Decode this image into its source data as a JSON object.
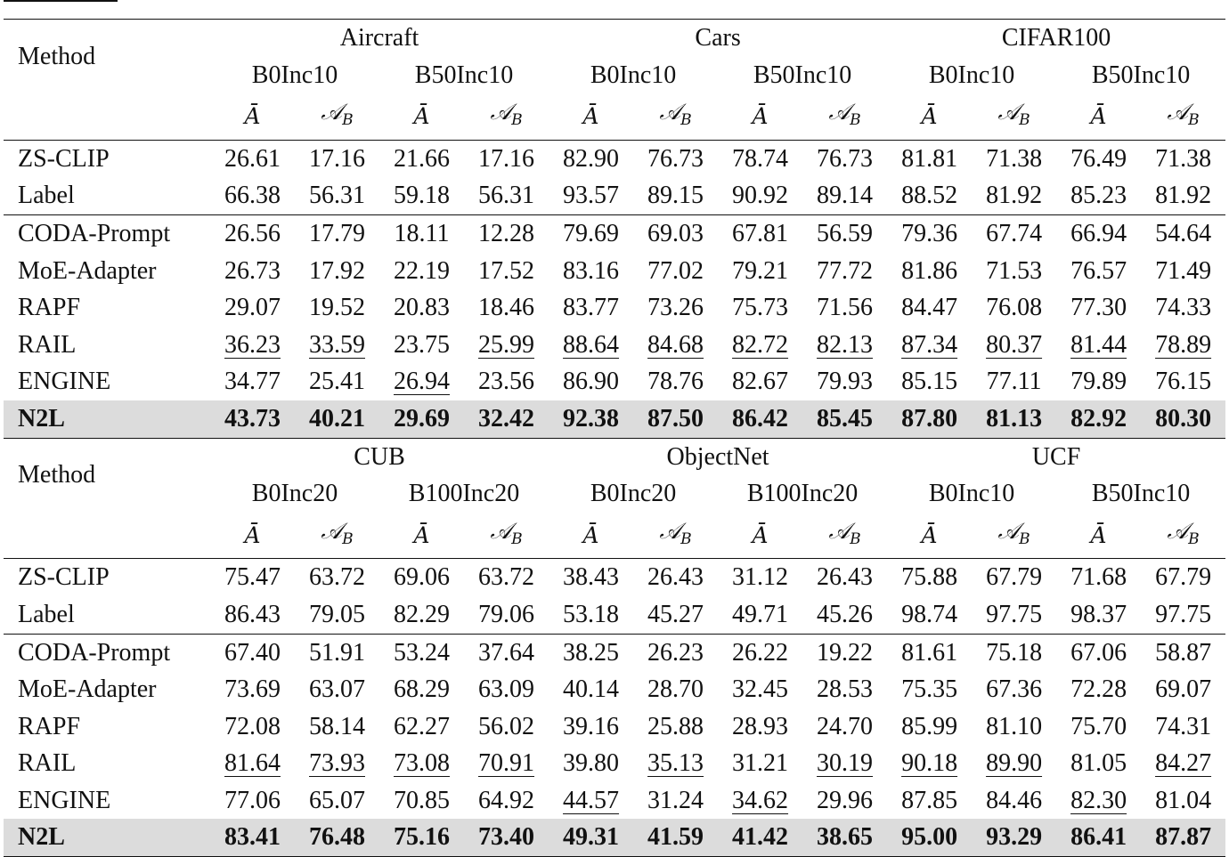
{
  "blocks": [
    {
      "method_header": "Method",
      "datasets": [
        "Aircraft",
        "Cars",
        "CIFAR100"
      ],
      "settings": [
        "B0Inc10",
        "B50Inc10",
        "B0Inc10",
        "B50Inc10",
        "B0Inc10",
        "B50Inc10"
      ],
      "metrics": [
        "Ā",
        "𝒜",
        "Ā",
        "𝒜",
        "Ā",
        "𝒜",
        "Ā",
        "𝒜",
        "Ā",
        "𝒜",
        "Ā",
        "𝒜"
      ],
      "metric_sub": "B",
      "baselines": [
        {
          "method": "ZS-CLIP",
          "values": [
            "26.61",
            "17.16",
            "21.66",
            "17.16",
            "82.90",
            "76.73",
            "78.74",
            "76.73",
            "81.81",
            "71.38",
            "76.49",
            "71.38"
          ]
        },
        {
          "method": "Label",
          "values": [
            "66.38",
            "56.31",
            "59.18",
            "56.31",
            "93.57",
            "89.15",
            "90.92",
            "89.14",
            "88.52",
            "81.92",
            "85.23",
            "81.92"
          ]
        }
      ],
      "methods": [
        {
          "method": "CODA-Prompt",
          "values": [
            "26.56",
            "17.79",
            "18.11",
            "12.28",
            "79.69",
            "69.03",
            "67.81",
            "56.59",
            "79.36",
            "67.74",
            "66.94",
            "54.64"
          ]
        },
        {
          "method": "MoE-Adapter",
          "values": [
            "26.73",
            "17.92",
            "22.19",
            "17.52",
            "83.16",
            "77.02",
            "79.21",
            "77.72",
            "81.86",
            "71.53",
            "76.57",
            "71.49"
          ]
        },
        {
          "method": "RAPF",
          "values": [
            "29.07",
            "19.52",
            "20.83",
            "18.46",
            "83.77",
            "73.26",
            "75.73",
            "71.56",
            "84.47",
            "76.08",
            "77.30",
            "74.33"
          ]
        },
        {
          "method": "RAIL",
          "values": [
            "36.23",
            "33.59",
            "23.75",
            "25.99",
            "88.64",
            "84.68",
            "82.72",
            "82.13",
            "87.34",
            "80.37",
            "81.44",
            "78.89"
          ],
          "underline": [
            0,
            1,
            3,
            4,
            5,
            6,
            7,
            8,
            9,
            10,
            11
          ]
        },
        {
          "method": "ENGINE",
          "values": [
            "34.77",
            "25.41",
            "26.94",
            "23.56",
            "86.90",
            "78.76",
            "82.67",
            "79.93",
            "85.15",
            "77.11",
            "79.89",
            "76.15"
          ],
          "underline": [
            2
          ]
        }
      ],
      "ours": {
        "method": "N2L",
        "values": [
          "43.73",
          "40.21",
          "29.69",
          "32.42",
          "92.38",
          "87.50",
          "86.42",
          "85.45",
          "87.80",
          "81.13",
          "82.92",
          "80.30"
        ]
      }
    },
    {
      "method_header": "Method",
      "datasets": [
        "CUB",
        "ObjectNet",
        "UCF"
      ],
      "settings": [
        "B0Inc20",
        "B100Inc20",
        "B0Inc20",
        "B100Inc20",
        "B0Inc10",
        "B50Inc10"
      ],
      "metrics": [
        "Ā",
        "𝒜",
        "Ā",
        "𝒜",
        "Ā",
        "𝒜",
        "Ā",
        "𝒜",
        "Ā",
        "𝒜",
        "Ā",
        "𝒜"
      ],
      "metric_sub": "B",
      "baselines": [
        {
          "method": "ZS-CLIP",
          "values": [
            "75.47",
            "63.72",
            "69.06",
            "63.72",
            "38.43",
            "26.43",
            "31.12",
            "26.43",
            "75.88",
            "67.79",
            "71.68",
            "67.79"
          ]
        },
        {
          "method": "Label",
          "values": [
            "86.43",
            "79.05",
            "82.29",
            "79.06",
            "53.18",
            "45.27",
            "49.71",
            "45.26",
            "98.74",
            "97.75",
            "98.37",
            "97.75"
          ]
        }
      ],
      "methods": [
        {
          "method": "CODA-Prompt",
          "values": [
            "67.40",
            "51.91",
            "53.24",
            "37.64",
            "38.25",
            "26.23",
            "26.22",
            "19.22",
            "81.61",
            "75.18",
            "67.06",
            "58.87"
          ]
        },
        {
          "method": "MoE-Adapter",
          "values": [
            "73.69",
            "63.07",
            "68.29",
            "63.09",
            "40.14",
            "28.70",
            "32.45",
            "28.53",
            "75.35",
            "67.36",
            "72.28",
            "69.07"
          ]
        },
        {
          "method": "RAPF",
          "values": [
            "72.08",
            "58.14",
            "62.27",
            "56.02",
            "39.16",
            "25.88",
            "28.93",
            "24.70",
            "85.99",
            "81.10",
            "75.70",
            "74.31"
          ]
        },
        {
          "method": "RAIL",
          "values": [
            "81.64",
            "73.93",
            "73.08",
            "70.91",
            "39.80",
            "35.13",
            "31.21",
            "30.19",
            "90.18",
            "89.90",
            "81.05",
            "84.27"
          ],
          "underline": [
            0,
            1,
            2,
            3,
            5,
            7,
            8,
            9,
            11
          ]
        },
        {
          "method": "ENGINE",
          "values": [
            "77.06",
            "65.07",
            "70.85",
            "64.92",
            "44.57",
            "31.24",
            "34.62",
            "29.96",
            "87.85",
            "84.46",
            "82.30",
            "81.04"
          ],
          "underline": [
            4,
            6,
            10
          ]
        }
      ],
      "ours": {
        "method": "N2L",
        "values": [
          "83.41",
          "76.48",
          "75.16",
          "73.40",
          "49.31",
          "41.59",
          "41.42",
          "38.65",
          "95.00",
          "93.29",
          "86.41",
          "87.87"
        ]
      }
    }
  ]
}
